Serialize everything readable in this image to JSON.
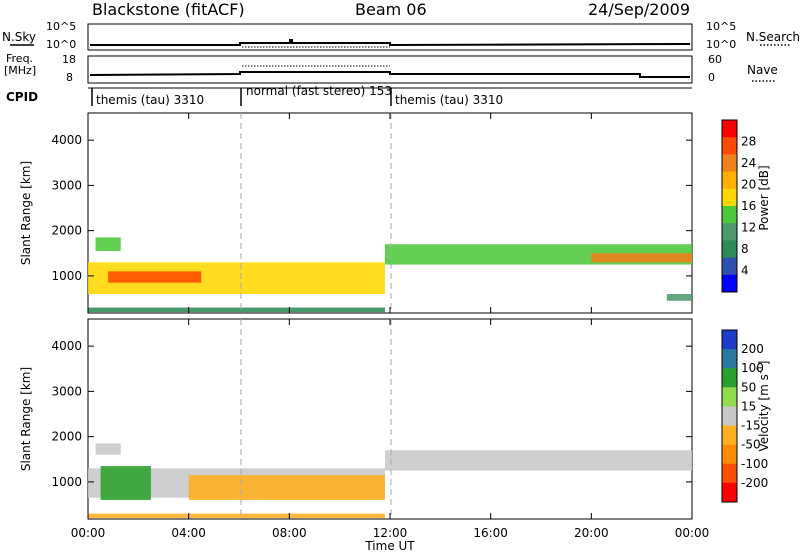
{
  "header": {
    "radar": "Blackstone (fitACF)",
    "beam": "Beam 06",
    "date": "24/Sep/2009"
  },
  "strip_labels": {
    "nsky": "N.Sky",
    "nsearch": "N.Search",
    "freq_line1": "Freq.",
    "freq_line2": "[MHz]",
    "nave": "Nave",
    "cpid": "CPID",
    "nsky_ticks": [
      "10^5",
      "10^0"
    ],
    "freq_ticks": [
      "18",
      "8"
    ],
    "nave_ticks": [
      "60",
      "0"
    ]
  },
  "cpid_segments": [
    {
      "label": "themis (tau) 3310",
      "start_h": 0,
      "end_h": 6
    },
    {
      "label": "normal (fast stereo) 153",
      "start_h": 6,
      "end_h": 12
    },
    {
      "label": "themis (tau) 3310",
      "start_h": 12,
      "end_h": 24
    }
  ],
  "axes": {
    "ylabel": "Slant Range [km]",
    "xlabel": "Time UT",
    "x_ticks": [
      "00:00",
      "04:00",
      "08:00",
      "12:00",
      "16:00",
      "20:00",
      "00:00"
    ],
    "y_ticks": [
      "1000",
      "2000",
      "3000",
      "4000"
    ]
  },
  "colorbars": {
    "power": {
      "title": "Power [dB]",
      "ticks": [
        "28",
        "24",
        "20",
        "16",
        "12",
        "8",
        "4"
      ],
      "colors": [
        "#ff0000",
        "#ff4a00",
        "#f0801a",
        "#ffb000",
        "#ffd700",
        "#4cc83a",
        "#4e9a6e",
        "#2e8b57",
        "#3050b0",
        "#0000ff"
      ]
    },
    "velocity": {
      "title": "Velocity [m s^-1]",
      "ticks": [
        "200",
        "100",
        "50",
        "15",
        "-15",
        "-50",
        "-100",
        "-200"
      ],
      "colors": [
        "#1e3cc8",
        "#2878a0",
        "#2ca02c",
        "#8cdc4c",
        "#c8c8c8",
        "#ffb020",
        "#ff8c00",
        "#ff5000",
        "#ff0000"
      ]
    }
  },
  "chart_data": {
    "type": "heatmap",
    "title": "Blackstone (fitACF)  Beam 06  24/Sep/2009",
    "xlabel": "Time UT",
    "ylabel": "Slant Range [km]",
    "xlim": [
      "00:00",
      "24:00"
    ],
    "ylim": [
      180,
      4600
    ],
    "series": [
      {
        "name": "Power [dB]",
        "zlim": [
          0,
          30
        ],
        "regions": [
          {
            "t_start": 0.0,
            "t_end": 11.8,
            "range_low": 600,
            "range_high": 1300,
            "value": 18
          },
          {
            "t_start": 0.8,
            "t_end": 4.5,
            "range_low": 850,
            "range_high": 1100,
            "value": 26
          },
          {
            "t_start": 0.3,
            "t_end": 1.3,
            "range_low": 1550,
            "range_high": 1850,
            "value": 14
          },
          {
            "t_start": 0.0,
            "t_end": 11.8,
            "range_low": 200,
            "range_high": 300,
            "value": 6
          },
          {
            "t_start": 11.8,
            "t_end": 24.0,
            "range_low": 1250,
            "range_high": 1700,
            "value": 12
          },
          {
            "t_start": 20.0,
            "t_end": 24.0,
            "range_low": 1300,
            "range_high": 1500,
            "value": 22
          },
          {
            "t_start": 23.0,
            "t_end": 24.0,
            "range_low": 450,
            "range_high": 600,
            "value": 10
          }
        ]
      },
      {
        "name": "Velocity [m s^-1]",
        "zlim": [
          -250,
          250
        ],
        "regions": [
          {
            "t_start": 0.0,
            "t_end": 11.8,
            "range_low": 650,
            "range_high": 1300,
            "value": 0
          },
          {
            "t_start": 0.5,
            "t_end": 2.5,
            "range_low": 600,
            "range_high": 1350,
            "value": 60
          },
          {
            "t_start": 4.0,
            "t_end": 11.8,
            "range_low": 600,
            "range_high": 1150,
            "value": -30
          },
          {
            "t_start": 0.3,
            "t_end": 1.3,
            "range_low": 1600,
            "range_high": 1850,
            "value": 0
          },
          {
            "t_start": 11.8,
            "t_end": 24.0,
            "range_low": 1250,
            "range_high": 1700,
            "value": 0
          },
          {
            "t_start": 0.0,
            "t_end": 11.8,
            "range_low": 200,
            "range_high": 300,
            "value": -30
          }
        ]
      }
    ]
  }
}
